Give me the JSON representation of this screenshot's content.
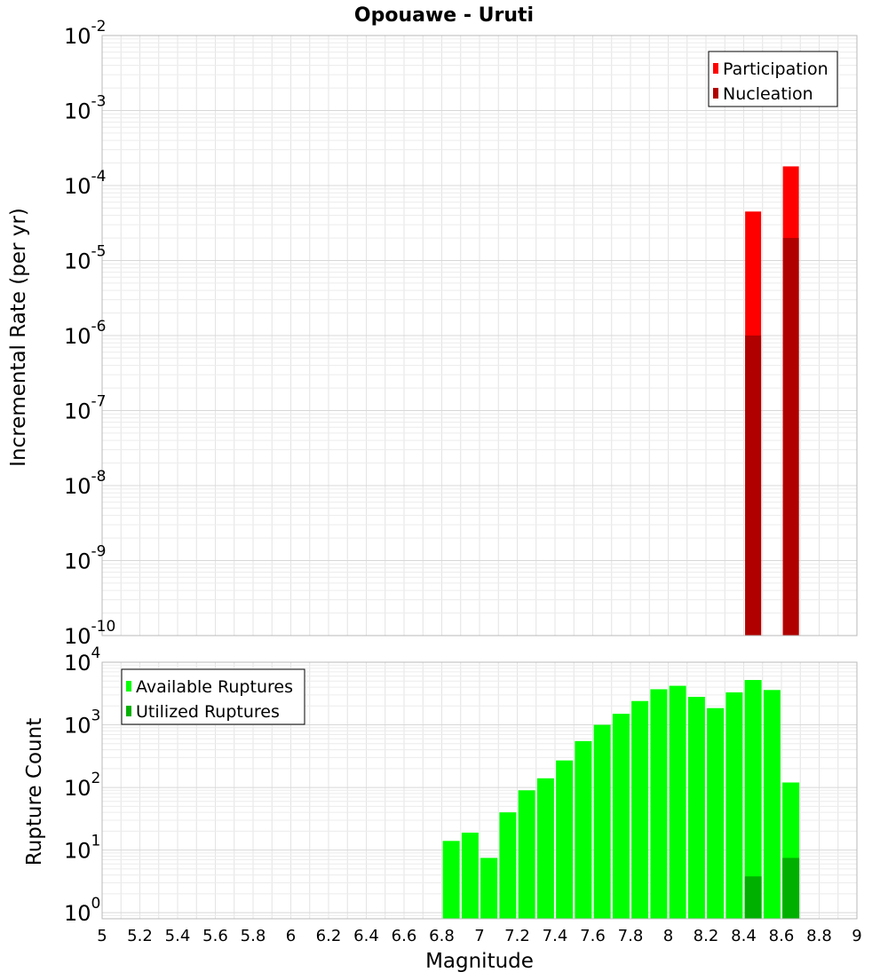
{
  "chart_data": [
    {
      "type": "bar",
      "title": "Opouawe - Uruti",
      "ylabel": "Incremental Rate (per yr)",
      "xlabel": "",
      "y_scale": "log",
      "ylim": [
        1e-10,
        0.01
      ],
      "xlim": [
        5,
        9
      ],
      "grid": true,
      "legend_position": "top-right",
      "y_tick_exponents": [
        "-2",
        "-3",
        "-4",
        "-5",
        "-6",
        "-7",
        "-8",
        "-9",
        "-10"
      ],
      "series": [
        {
          "name": "Participation",
          "color": "#ff0000",
          "points": [
            {
              "x": 8.45,
              "y": 4.5e-05
            },
            {
              "x": 8.65,
              "y": 0.00018
            }
          ]
        },
        {
          "name": "Nucleation",
          "color": "#b00000",
          "points": [
            {
              "x": 8.45,
              "y": 1e-06
            },
            {
              "x": 8.65,
              "y": 2e-05
            }
          ]
        }
      ]
    },
    {
      "type": "bar",
      "ylabel": "Rupture Count",
      "xlabel": "Magnitude",
      "y_scale": "log",
      "ylim": [
        0.8,
        10000
      ],
      "xlim": [
        5,
        9
      ],
      "grid": true,
      "legend_position": "top-left",
      "x_tick_labels": [
        "5",
        "5.2",
        "5.4",
        "5.6",
        "5.8",
        "6",
        "6.2",
        "6.4",
        "6.6",
        "6.8",
        "7",
        "7.2",
        "7.4",
        "7.6",
        "7.8",
        "8",
        "8.2",
        "8.4",
        "8.6",
        "8.8",
        "9"
      ],
      "y_tick_exponents": [
        "4",
        "3",
        "2",
        "1",
        "0"
      ],
      "series": [
        {
          "name": "Available Ruptures",
          "color": "#00ff00",
          "points": [
            {
              "x": 6.85,
              "y": 14
            },
            {
              "x": 6.95,
              "y": 19
            },
            {
              "x": 7.05,
              "y": 7.5
            },
            {
              "x": 7.15,
              "y": 40
            },
            {
              "x": 7.25,
              "y": 90
            },
            {
              "x": 7.35,
              "y": 140
            },
            {
              "x": 7.45,
              "y": 270
            },
            {
              "x": 7.55,
              "y": 550
            },
            {
              "x": 7.65,
              "y": 1000
            },
            {
              "x": 7.75,
              "y": 1500
            },
            {
              "x": 7.85,
              "y": 2400
            },
            {
              "x": 7.95,
              "y": 3700
            },
            {
              "x": 8.05,
              "y": 4200
            },
            {
              "x": 8.15,
              "y": 2800
            },
            {
              "x": 8.25,
              "y": 1850
            },
            {
              "x": 8.35,
              "y": 3300
            },
            {
              "x": 8.45,
              "y": 5200
            },
            {
              "x": 8.55,
              "y": 3600
            },
            {
              "x": 8.65,
              "y": 120
            }
          ]
        },
        {
          "name": "Utilized Ruptures",
          "color": "#00b000",
          "points": [
            {
              "x": 8.45,
              "y": 3.8
            },
            {
              "x": 8.65,
              "y": 7.5
            }
          ]
        }
      ]
    }
  ]
}
